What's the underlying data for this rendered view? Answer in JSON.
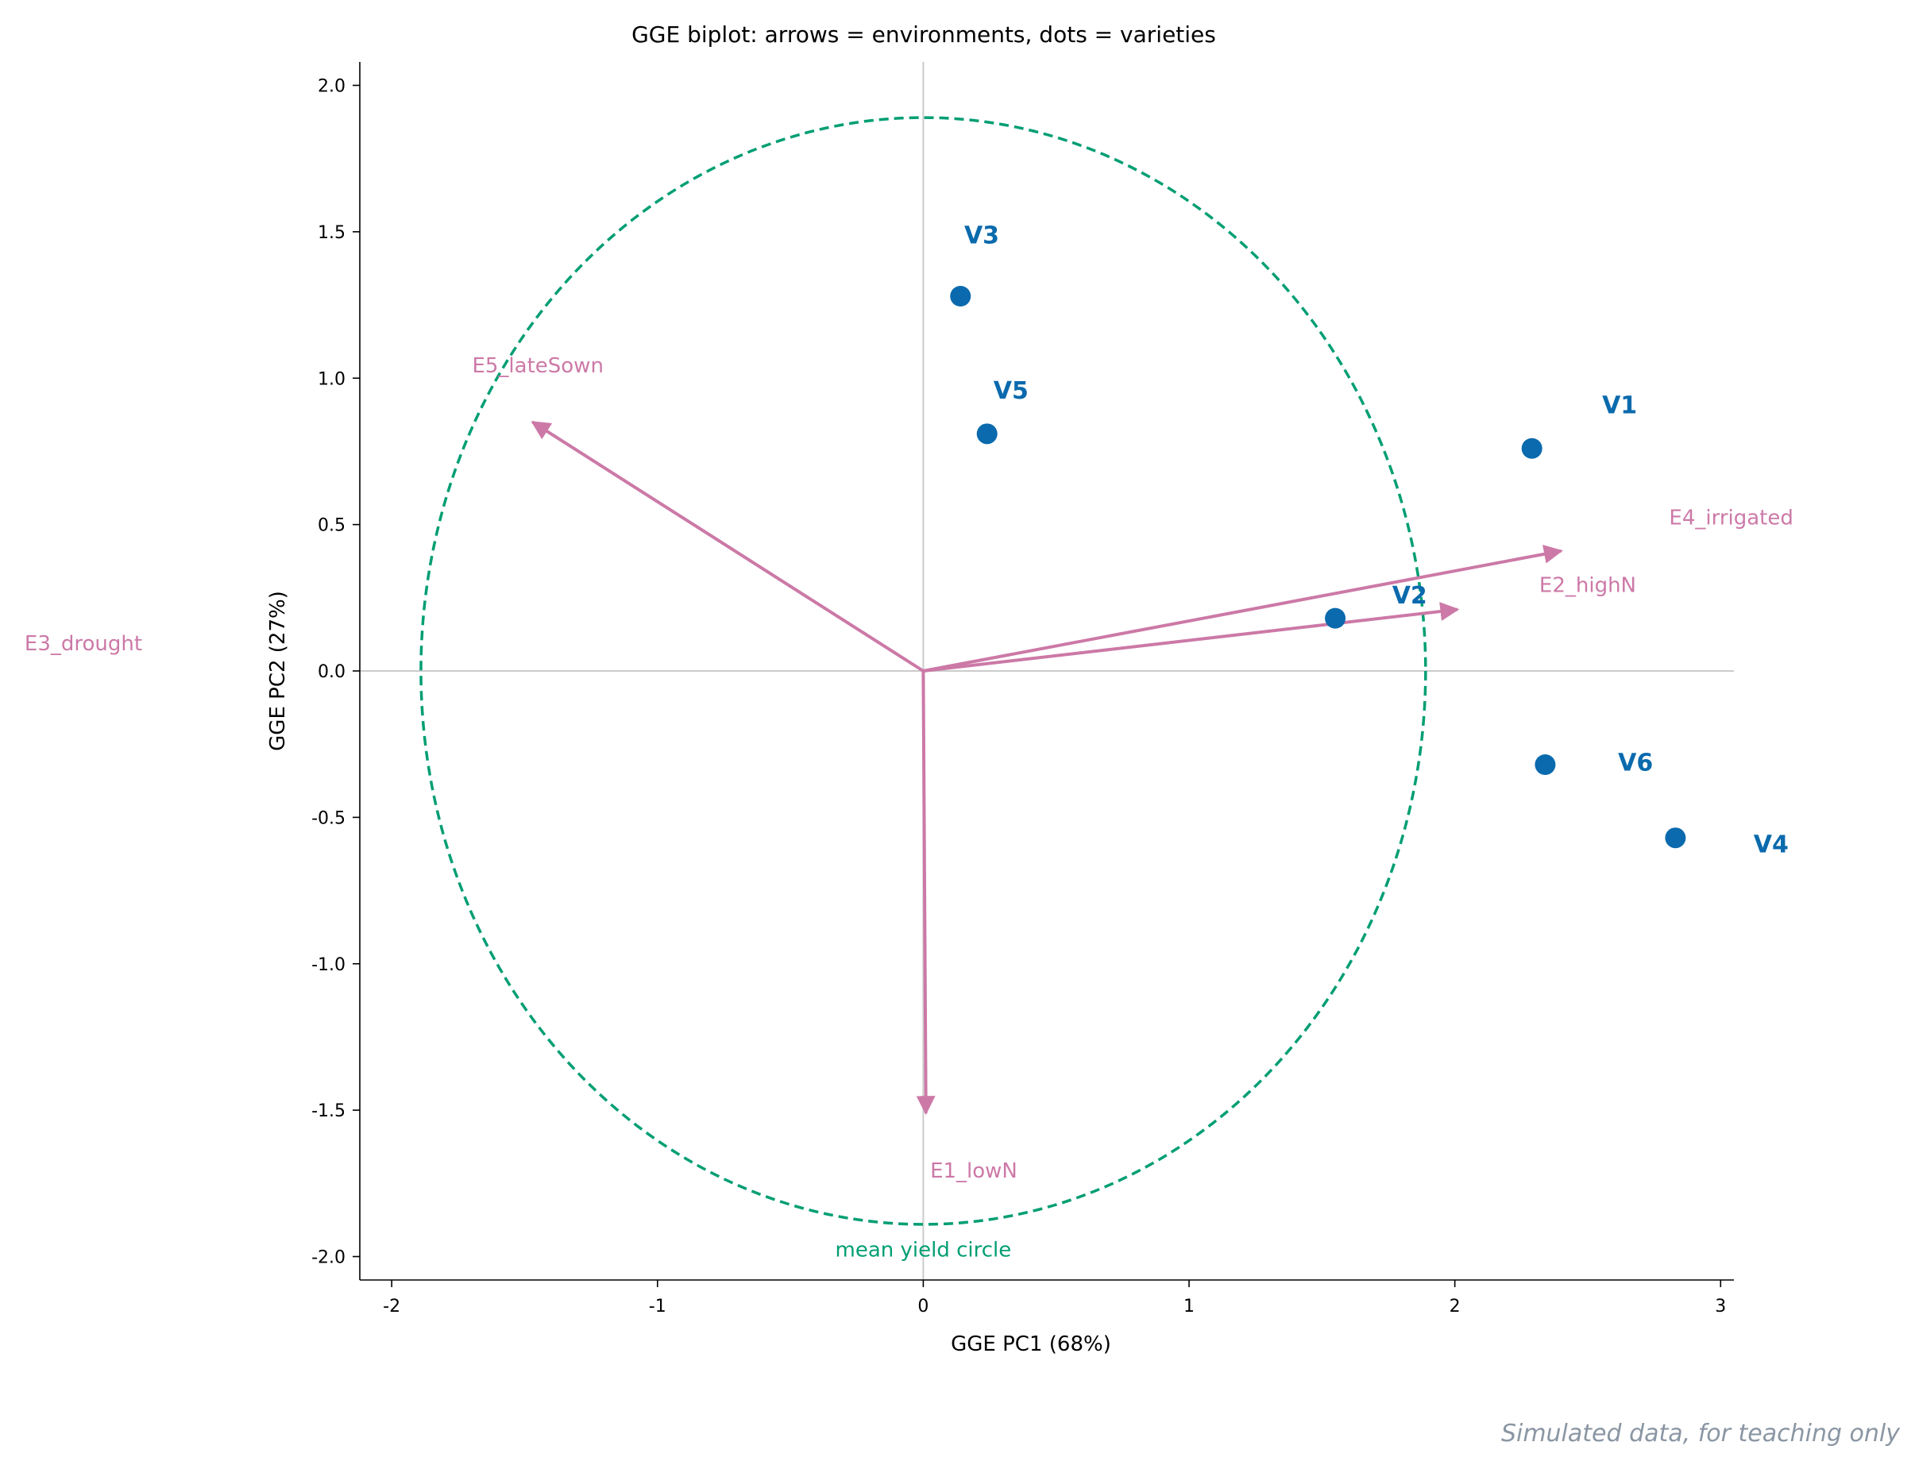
{
  "chart_data": {
    "type": "scatter",
    "title": "GGE biplot: arrows = environments, dots = varieties",
    "xlabel": "GGE PC1 (68%)",
    "ylabel": "GGE PC2 (27%)",
    "xlim": [
      -2.12,
      3.05
    ],
    "ylim": [
      -2.08,
      2.08
    ],
    "xticks": [
      -2,
      -1,
      0,
      1,
      2,
      3
    ],
    "xtick_labels": [
      "-2",
      "-1",
      "0",
      "1",
      "2",
      "3"
    ],
    "yticks": [
      -2.0,
      -1.5,
      -1.0,
      -0.5,
      0.0,
      0.5,
      1.0,
      1.5,
      2.0
    ],
    "ytick_labels": [
      "-2.0",
      "-1.5",
      "-1.0",
      "-0.5",
      "0.0",
      "0.5",
      "1.0",
      "1.5",
      "2.0"
    ],
    "grid": false,
    "reference_lines": {
      "x": 0,
      "y": 0,
      "color": "#cccccc"
    },
    "varieties": {
      "color": "#0a6aad",
      "points": [
        {
          "name": "V1",
          "x": 2.29,
          "y": 0.76,
          "label_x": 2.62,
          "label_y": 0.88
        },
        {
          "name": "V2",
          "x": 1.55,
          "y": 0.18,
          "label_x": 1.83,
          "label_y": 0.23
        },
        {
          "name": "V3",
          "x": 0.14,
          "y": 1.28,
          "label_x": 0.22,
          "label_y": 1.46
        },
        {
          "name": "V4",
          "x": 2.83,
          "y": -0.57,
          "label_x": 3.19,
          "label_y": -0.62
        },
        {
          "name": "V5",
          "x": 0.24,
          "y": 0.81,
          "label_x": 0.33,
          "label_y": 0.93
        },
        {
          "name": "V6",
          "x": 2.34,
          "y": -0.32,
          "label_x": 2.68,
          "label_y": -0.34
        }
      ]
    },
    "environments": {
      "color": "#cc79a7",
      "vectors": [
        {
          "name": "E1_lowN",
          "x": 0.01,
          "y": -1.51,
          "label_x": 0.19,
          "label_y": -1.73
        },
        {
          "name": "E2_highN",
          "x": 2.01,
          "y": 0.21,
          "label_x": 2.5,
          "label_y": 0.27
        },
        {
          "name": "E3_drought",
          "x": null,
          "y": null,
          "label_x": -3.16,
          "label_y": 0.07
        },
        {
          "name": "E4_irrigated",
          "x": 2.4,
          "y": 0.41,
          "label_x": 3.04,
          "label_y": 0.5
        },
        {
          "name": "E5_lateSown",
          "x": -1.47,
          "y": 0.85,
          "label_x": -1.45,
          "label_y": 1.02
        }
      ]
    },
    "mean_yield_circle": {
      "label": "mean yield circle",
      "radius": 1.89,
      "color": "#009e73",
      "style": "dashed",
      "label_x": 0.0,
      "label_y": -2.0
    }
  },
  "footer": "Simulated data, for teaching only"
}
